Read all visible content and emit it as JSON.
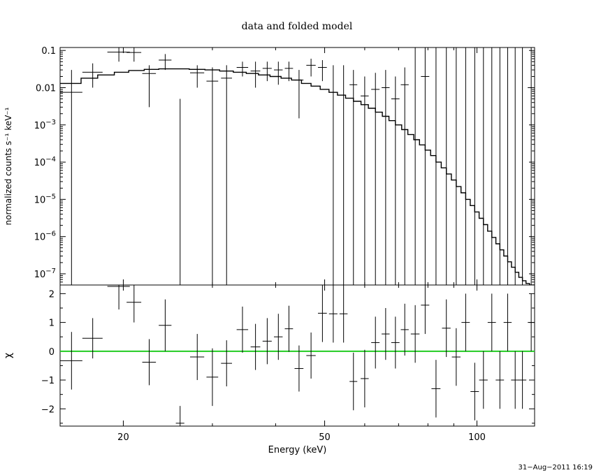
{
  "chart_data": [
    {
      "type": "line",
      "title": "data and folded model",
      "xlabel": "Energy (keV)",
      "ylabel": "normalized counts s⁻¹ keV⁻¹",
      "xscale": "log",
      "yscale": "log",
      "xlim": [
        15,
        130
      ],
      "ylim": [
        5e-08,
        0.12
      ],
      "grid": false,
      "xticks": [
        20,
        50,
        100
      ],
      "xtick_labels": [
        "20",
        "50",
        "100"
      ],
      "yticks": [
        0.1,
        0.01,
        0.001,
        0.0001,
        1e-05,
        1e-06,
        1e-07
      ],
      "ytick_labels": [
        {
          "base": "0.1",
          "exp": ""
        },
        {
          "base": "0.01",
          "exp": ""
        },
        {
          "base": "10",
          "exp": "−3"
        },
        {
          "base": "10",
          "exp": "−4"
        },
        {
          "base": "10",
          "exp": "−5"
        },
        {
          "base": "10",
          "exp": "−6"
        },
        {
          "base": "10",
          "exp": "−7"
        }
      ],
      "series": [
        {
          "kind": "data-with-errors",
          "points": [
            {
              "x": 15.8,
              "y": 0.0075,
              "xerr": 0.8,
              "ylo": 5e-08,
              "yhi": 0.03
            },
            {
              "x": 17.4,
              "y": 0.026,
              "xerr": 0.8,
              "ylo": 0.01,
              "yhi": 0.045
            },
            {
              "x": 19.6,
              "y": 0.09,
              "xerr": 1.0,
              "ylo": 0.05,
              "yhi": 0.12
            },
            {
              "x": 21.0,
              "y": 0.088,
              "xerr": 0.7,
              "ylo": 0.05,
              "yhi": 0.12
            },
            {
              "x": 22.5,
              "y": 0.024,
              "xerr": 0.7,
              "ylo": 0.003,
              "yhi": 0.04
            },
            {
              "x": 24.2,
              "y": 0.055,
              "xerr": 0.7,
              "ylo": 0.03,
              "yhi": 0.08
            },
            {
              "x": 25.9,
              "y": 5e-08,
              "xerr": 0.5,
              "ylo": 5e-08,
              "yhi": 0.005
            },
            {
              "x": 28.0,
              "y": 0.025,
              "xerr": 0.9,
              "ylo": 0.01,
              "yhi": 0.04
            },
            {
              "x": 30.0,
              "y": 0.015,
              "xerr": 0.8,
              "ylo": 5e-08,
              "yhi": 0.035
            },
            {
              "x": 32.0,
              "y": 0.018,
              "xerr": 0.8,
              "ylo": 5e-08,
              "yhi": 0.04
            },
            {
              "x": 34.4,
              "y": 0.035,
              "xerr": 0.9,
              "ylo": 0.02,
              "yhi": 0.05
            },
            {
              "x": 36.5,
              "y": 0.028,
              "xerr": 0.8,
              "ylo": 0.01,
              "yhi": 0.05
            },
            {
              "x": 38.5,
              "y": 0.033,
              "xerr": 0.8,
              "ylo": 0.015,
              "yhi": 0.05
            },
            {
              "x": 40.5,
              "y": 0.03,
              "xerr": 0.8,
              "ylo": 0.012,
              "yhi": 0.05
            },
            {
              "x": 42.5,
              "y": 0.033,
              "xerr": 0.8,
              "ylo": 0.015,
              "yhi": 0.05
            },
            {
              "x": 44.5,
              "y": 0.016,
              "xerr": 0.9,
              "ylo": 0.0015,
              "yhi": 0.03
            },
            {
              "x": 47.0,
              "y": 0.04,
              "xerr": 1.0,
              "ylo": 0.02,
              "yhi": 0.06
            },
            {
              "x": 49.5,
              "y": 0.035,
              "xerr": 1.0,
              "ylo": 0.015,
              "yhi": 0.055
            },
            {
              "x": 52.0,
              "y": 5e-08,
              "xerr": 1.0,
              "ylo": 5e-08,
              "yhi": 0.04
            },
            {
              "x": 54.5,
              "y": 5e-08,
              "xerr": 1.0,
              "ylo": 5e-08,
              "yhi": 0.04
            },
            {
              "x": 57.0,
              "y": 0.012,
              "xerr": 1.0,
              "ylo": 5e-08,
              "yhi": 0.03
            },
            {
              "x": 60.0,
              "y": 0.006,
              "xerr": 1.1,
              "ylo": 5e-08,
              "yhi": 0.02
            },
            {
              "x": 63.0,
              "y": 0.009,
              "xerr": 1.2,
              "ylo": 5e-08,
              "yhi": 0.025
            },
            {
              "x": 66.0,
              "y": 0.01,
              "xerr": 1.2,
              "ylo": 5e-08,
              "yhi": 0.03
            },
            {
              "x": 69.0,
              "y": 0.005,
              "xerr": 1.3,
              "ylo": 5e-08,
              "yhi": 0.02
            },
            {
              "x": 72.0,
              "y": 0.012,
              "xerr": 1.3,
              "ylo": 5e-08,
              "yhi": 0.035
            },
            {
              "x": 75.5,
              "y": 5e-08,
              "xerr": 1.5,
              "ylo": 5e-08,
              "yhi": 0.12
            },
            {
              "x": 79.0,
              "y": 0.02,
              "xerr": 1.5,
              "ylo": 5e-08,
              "yhi": 0.12
            },
            {
              "x": 83.0,
              "y": 5e-08,
              "xerr": 1.7,
              "ylo": 5e-08,
              "yhi": 0.12
            },
            {
              "x": 87.0,
              "y": 5e-08,
              "xerr": 1.7,
              "ylo": 5e-08,
              "yhi": 0.12
            },
            {
              "x": 91.0,
              "y": 5e-08,
              "xerr": 1.8,
              "ylo": 5e-08,
              "yhi": 0.12
            },
            {
              "x": 95.0,
              "y": 5e-08,
              "xerr": 1.8,
              "ylo": 5e-08,
              "yhi": 0.12
            },
            {
              "x": 99.0,
              "y": 5e-08,
              "xerr": 1.9,
              "ylo": 5e-08,
              "yhi": 0.12
            },
            {
              "x": 103.0,
              "y": 5e-08,
              "xerr": 2.0,
              "ylo": 5e-08,
              "yhi": 0.12
            },
            {
              "x": 107.0,
              "y": 5e-08,
              "xerr": 2.0,
              "ylo": 5e-08,
              "yhi": 0.12
            },
            {
              "x": 111.0,
              "y": 5e-08,
              "xerr": 2.1,
              "ylo": 5e-08,
              "yhi": 0.12
            },
            {
              "x": 115.0,
              "y": 5e-08,
              "xerr": 2.1,
              "ylo": 5e-08,
              "yhi": 0.12
            },
            {
              "x": 119.0,
              "y": 5e-08,
              "xerr": 2.2,
              "ylo": 5e-08,
              "yhi": 0.12
            },
            {
              "x": 123.0,
              "y": 5e-08,
              "xerr": 2.2,
              "ylo": 5e-08,
              "yhi": 0.12
            },
            {
              "x": 128.0,
              "y": 0.01,
              "xerr": 2.0,
              "ylo": 5e-08,
              "yhi": 0.12
            }
          ]
        },
        {
          "kind": "model-step",
          "x": [
            15,
            16.5,
            17.8,
            19.2,
            20.5,
            22,
            23.5,
            25,
            27,
            29,
            31,
            33,
            35,
            37,
            39,
            41,
            43,
            45,
            47,
            49,
            51,
            53,
            55,
            57,
            59,
            61,
            63,
            65,
            67,
            69,
            71,
            73,
            75,
            77,
            79,
            81,
            83,
            85,
            87,
            89,
            91,
            93,
            95,
            97,
            99,
            101,
            103,
            105,
            107,
            109,
            111,
            113,
            115,
            117,
            119,
            121,
            123,
            125,
            127,
            130
          ],
          "y": [
            0.013,
            0.018,
            0.022,
            0.026,
            0.029,
            0.031,
            0.032,
            0.032,
            0.031,
            0.03,
            0.028,
            0.026,
            0.024,
            0.022,
            0.02,
            0.018,
            0.016,
            0.013,
            0.011,
            0.009,
            0.0075,
            0.0063,
            0.0052,
            0.0043,
            0.0035,
            0.0028,
            0.0022,
            0.0017,
            0.0013,
            0.001,
            0.00075,
            0.00055,
            0.0004,
            0.00029,
            0.00021,
            0.00015,
            0.0001,
            7e-05,
            4.8e-05,
            3.3e-05,
            2.2e-05,
            1.5e-05,
            1e-05,
            6.8e-06,
            4.6e-06,
            3.1e-06,
            2.1e-06,
            1.4e-06,
            9.5e-07,
            6.4e-07,
            4.4e-07,
            3e-07,
            2.1e-07,
            1.5e-07,
            1.1e-07,
            8e-08,
            6.5e-08,
            5.5e-08,
            5e-08,
            5e-08
          ]
        }
      ]
    },
    {
      "type": "scatter",
      "xlabel": "Energy (keV)",
      "ylabel": "χ",
      "xscale": "log",
      "xlim": [
        15,
        130
      ],
      "ylim": [
        -2.6,
        2.3
      ],
      "grid": false,
      "xticks": [
        20,
        50,
        100
      ],
      "xtick_labels": [
        "20",
        "50",
        "100"
      ],
      "yticks": [
        2,
        1,
        0,
        -1,
        -2
      ],
      "ytick_labels": [
        "2",
        "1",
        "0",
        "−1",
        "−2"
      ],
      "zero_line": {
        "y": 0,
        "color": "#22cc22"
      },
      "series": [
        {
          "kind": "residuals-with-errors",
          "points": [
            {
              "x": 15.8,
              "y": -0.33,
              "xerr": 0.8,
              "yerr": 1.0
            },
            {
              "x": 17.4,
              "y": 0.45,
              "xerr": 0.8,
              "yerr": 0.7
            },
            {
              "x": 19.6,
              "y": 2.25,
              "xerr": 1.0,
              "yerr": 0.8
            },
            {
              "x": 21.0,
              "y": 1.7,
              "xerr": 0.7,
              "yerr": 0.7
            },
            {
              "x": 22.5,
              "y": -0.38,
              "xerr": 0.7,
              "yerr": 0.8
            },
            {
              "x": 24.2,
              "y": 0.9,
              "xerr": 0.7,
              "yerr": 0.9
            },
            {
              "x": 25.9,
              "y": -2.5,
              "xerr": 0.5,
              "yerr": 0.6
            },
            {
              "x": 28.0,
              "y": -0.2,
              "xerr": 0.9,
              "yerr": 0.8
            },
            {
              "x": 30.0,
              "y": -0.9,
              "xerr": 0.8,
              "yerr": 1.0
            },
            {
              "x": 32.0,
              "y": -0.42,
              "xerr": 0.8,
              "yerr": 0.8
            },
            {
              "x": 34.4,
              "y": 0.75,
              "xerr": 0.9,
              "yerr": 0.8
            },
            {
              "x": 36.5,
              "y": 0.15,
              "xerr": 0.8,
              "yerr": 0.8
            },
            {
              "x": 38.5,
              "y": 0.35,
              "xerr": 0.8,
              "yerr": 0.8
            },
            {
              "x": 40.5,
              "y": 0.5,
              "xerr": 0.8,
              "yerr": 0.8
            },
            {
              "x": 42.5,
              "y": 0.78,
              "xerr": 0.8,
              "yerr": 0.8
            },
            {
              "x": 44.5,
              "y": -0.6,
              "xerr": 0.9,
              "yerr": 0.8
            },
            {
              "x": 47.0,
              "y": -0.15,
              "xerr": 1.0,
              "yerr": 0.8
            },
            {
              "x": 49.5,
              "y": 1.32,
              "xerr": 1.0,
              "yerr": 1.0
            },
            {
              "x": 52.0,
              "y": 1.3,
              "xerr": 1.0,
              "yerr": 1.0
            },
            {
              "x": 54.5,
              "y": 1.3,
              "xerr": 1.0,
              "yerr": 1.0
            },
            {
              "x": 57.0,
              "y": -1.05,
              "xerr": 1.0,
              "yerr": 1.0
            },
            {
              "x": 60.0,
              "y": -0.95,
              "xerr": 1.1,
              "yerr": 1.0
            },
            {
              "x": 63.0,
              "y": 0.3,
              "xerr": 1.2,
              "yerr": 0.9
            },
            {
              "x": 66.0,
              "y": 0.6,
              "xerr": 1.2,
              "yerr": 0.9
            },
            {
              "x": 69.0,
              "y": 0.3,
              "xerr": 1.3,
              "yerr": 0.9
            },
            {
              "x": 72.0,
              "y": 0.75,
              "xerr": 1.3,
              "yerr": 0.9
            },
            {
              "x": 75.5,
              "y": 0.6,
              "xerr": 1.5,
              "yerr": 1.0
            },
            {
              "x": 79.0,
              "y": 1.6,
              "xerr": 1.5,
              "yerr": 1.0
            },
            {
              "x": 83.0,
              "y": -1.3,
              "xerr": 1.7,
              "yerr": 1.0
            },
            {
              "x": 87.0,
              "y": 0.8,
              "xerr": 1.7,
              "yerr": 1.0
            },
            {
              "x": 91.0,
              "y": -0.2,
              "xerr": 1.8,
              "yerr": 1.0
            },
            {
              "x": 95.0,
              "y": 1.0,
              "xerr": 1.8,
              "yerr": 1.0
            },
            {
              "x": 99.0,
              "y": -1.4,
              "xerr": 1.9,
              "yerr": 1.0
            },
            {
              "x": 103.0,
              "y": -1.0,
              "xerr": 2.0,
              "yerr": 1.0
            },
            {
              "x": 107.0,
              "y": 1.0,
              "xerr": 2.0,
              "yerr": 1.0
            },
            {
              "x": 111.0,
              "y": -1.0,
              "xerr": 2.1,
              "yerr": 1.0
            },
            {
              "x": 115.0,
              "y": 1.0,
              "xerr": 2.1,
              "yerr": 1.0
            },
            {
              "x": 119.0,
              "y": -1.0,
              "xerr": 2.2,
              "yerr": 1.0
            },
            {
              "x": 123.0,
              "y": -1.0,
              "xerr": 2.2,
              "yerr": 1.0
            },
            {
              "x": 128.0,
              "y": 1.0,
              "xerr": 2.0,
              "yerr": 1.0
            }
          ]
        }
      ]
    }
  ],
  "timestamp": "31−Aug−2011 16:19"
}
